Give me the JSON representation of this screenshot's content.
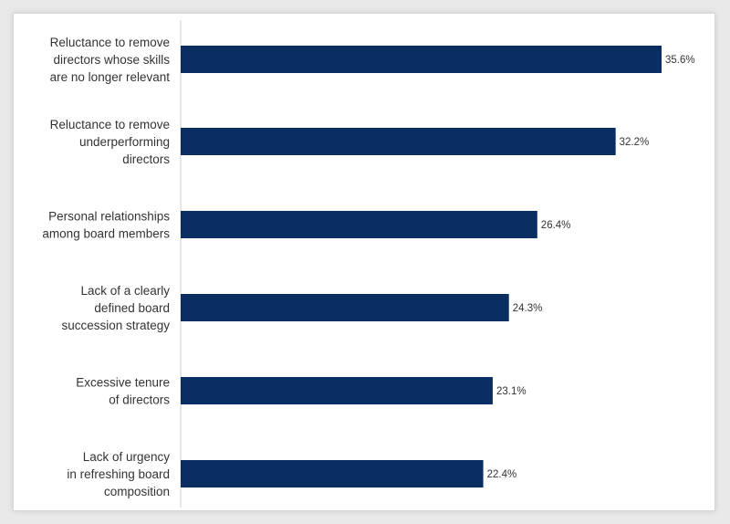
{
  "chart_data": {
    "type": "bar",
    "orientation": "horizontal",
    "title": "",
    "xlabel": "",
    "ylabel": "",
    "categories": [
      [
        "Reluctance to remove",
        "directors whose skills",
        "are no longer relevant"
      ],
      [
        "Reluctance to remove",
        "underperforming",
        "directors"
      ],
      [
        "Personal relationships",
        "among board members"
      ],
      [
        "Lack of a clearly",
        "defined board",
        "succession strategy"
      ],
      [
        "Excessive tenure",
        "of directors"
      ],
      [
        "Lack of urgency",
        "in refreshing board",
        "composition"
      ]
    ],
    "values": [
      35.6,
      32.2,
      26.4,
      24.3,
      23.1,
      22.4
    ],
    "data_labels": [
      "35.6%",
      "32.2%",
      "26.4%",
      "24.3%",
      "23.1%",
      "22.4%"
    ],
    "xlim": [
      0,
      38
    ],
    "grid": false,
    "legend": "none",
    "colors": {
      "bar": "#0a2d62",
      "axis": "#cfcfcf",
      "text": "#333333"
    }
  }
}
